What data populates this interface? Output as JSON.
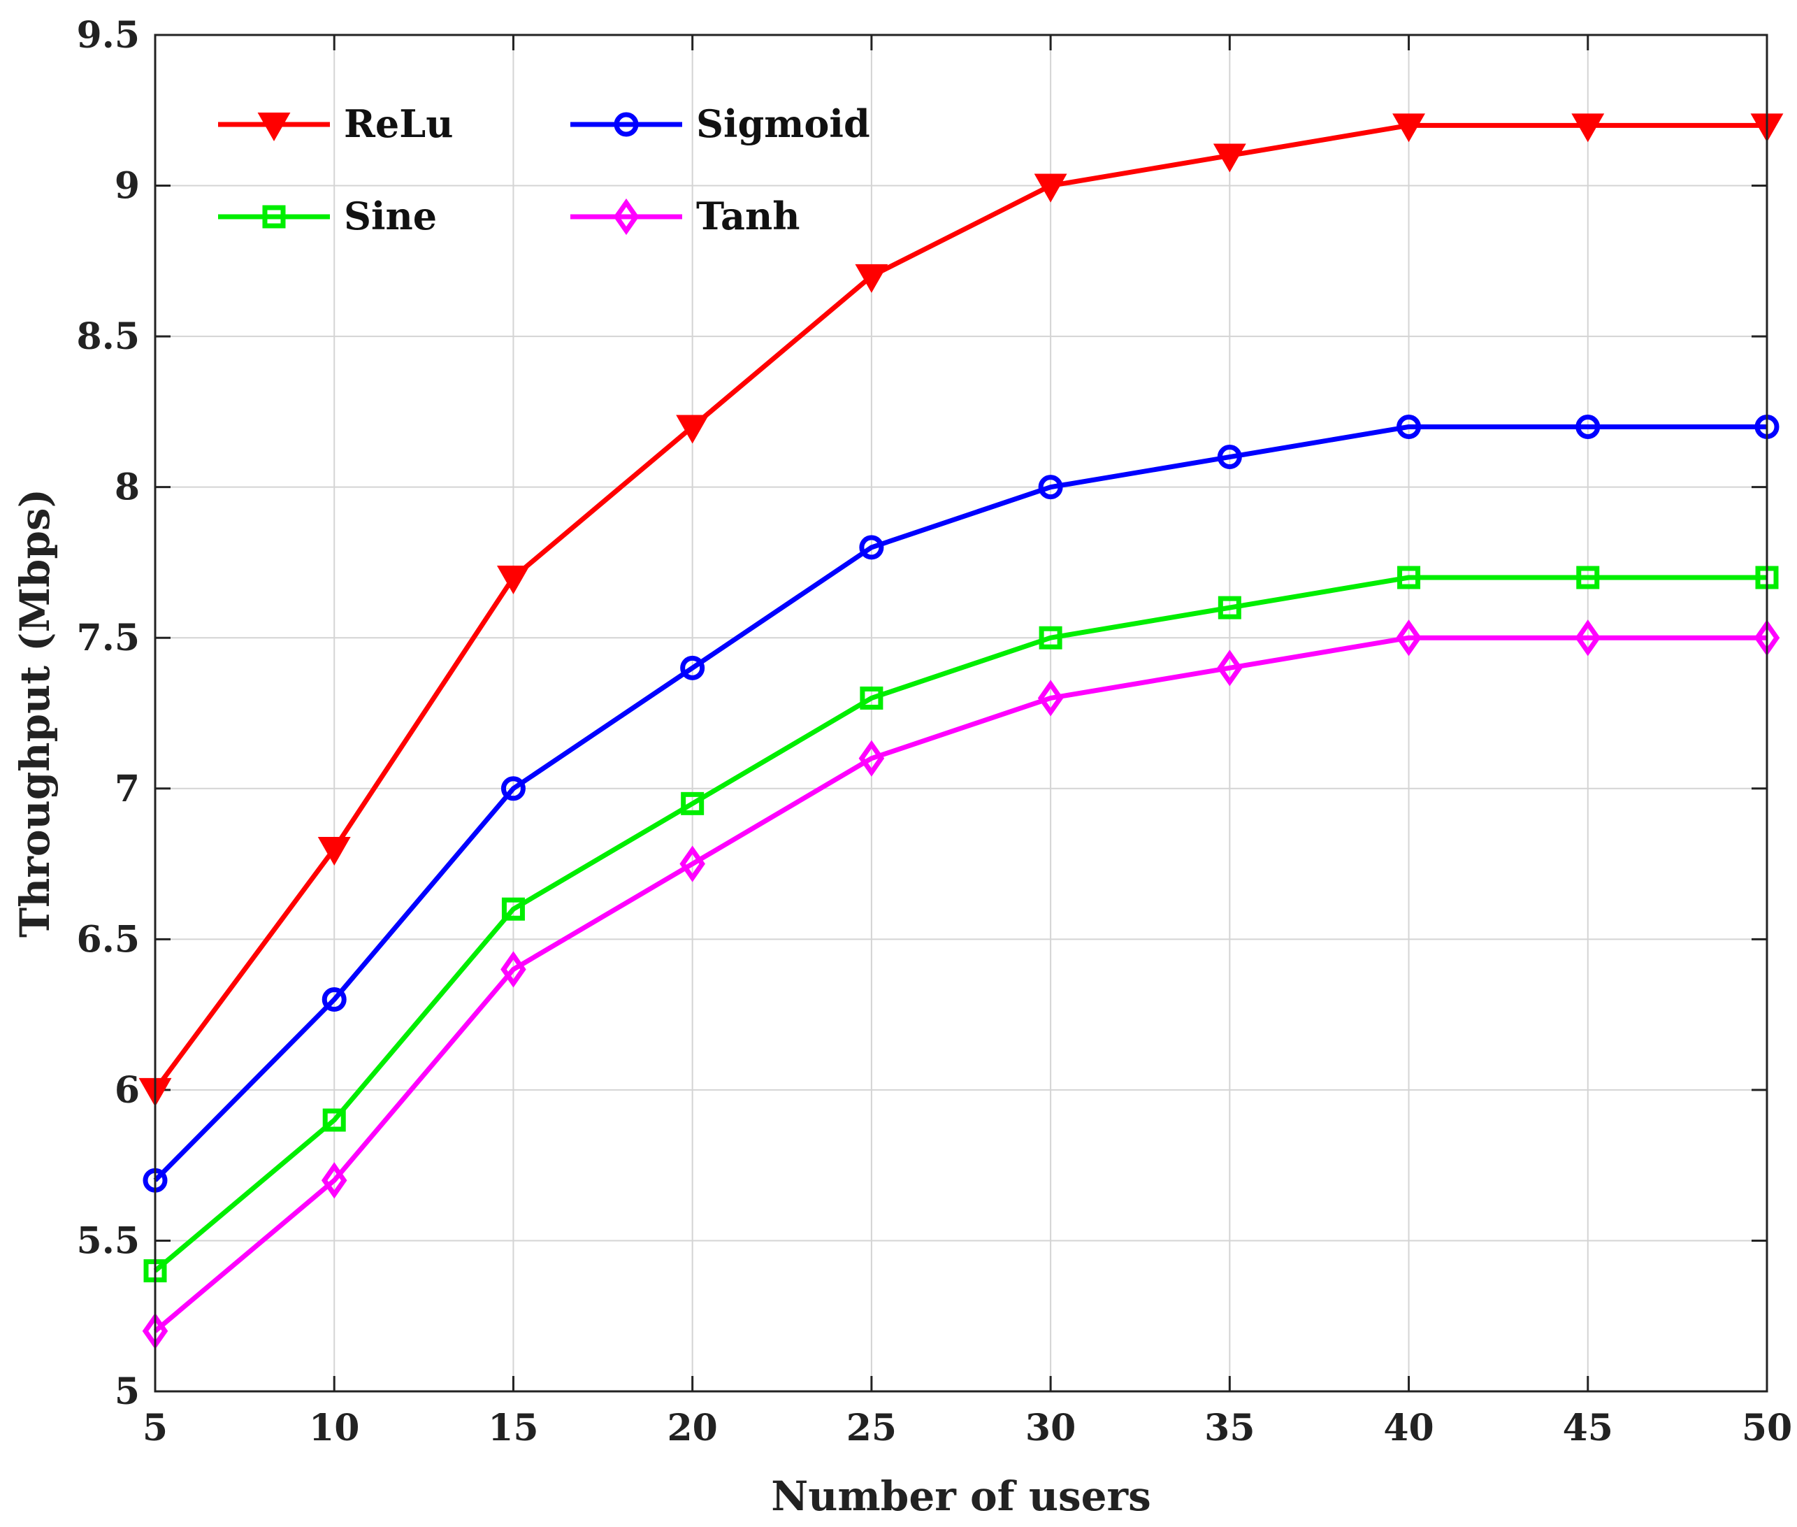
{
  "chart_data": {
    "type": "line",
    "title": "",
    "xlabel": "Number of users",
    "ylabel": "Throughput (Mbps)",
    "x": [
      5,
      10,
      15,
      20,
      25,
      30,
      35,
      40,
      45,
      50
    ],
    "xlim": [
      5,
      50
    ],
    "ylim": [
      5,
      9.5
    ],
    "xticks": [
      "5",
      "10",
      "15",
      "20",
      "25",
      "30",
      "35",
      "40",
      "45",
      "50"
    ],
    "yticks": [
      "5",
      "5.5",
      "6",
      "6.5",
      "7",
      "7.5",
      "8",
      "8.5",
      "9",
      "9.5"
    ],
    "grid": true,
    "legend_position": "top-left",
    "series": [
      {
        "name": "ReLu",
        "color": "#ff0000",
        "marker": "triangle-down",
        "values": [
          6.0,
          6.8,
          7.7,
          8.2,
          8.7,
          9.0,
          9.1,
          9.2,
          9.2,
          9.2
        ]
      },
      {
        "name": "Sigmoid",
        "color": "#0000ff",
        "marker": "circle",
        "values": [
          5.7,
          6.3,
          7.0,
          7.4,
          7.8,
          8.0,
          8.1,
          8.2,
          8.2,
          8.2
        ]
      },
      {
        "name": "Sine",
        "color": "#00ee00",
        "marker": "square",
        "values": [
          5.4,
          5.9,
          6.6,
          6.95,
          7.3,
          7.5,
          7.6,
          7.7,
          7.7,
          7.7
        ]
      },
      {
        "name": "Tanh",
        "color": "#ff00ff",
        "marker": "diamond",
        "values": [
          5.2,
          5.7,
          6.4,
          6.75,
          7.1,
          7.3,
          7.4,
          7.5,
          7.5,
          7.5
        ]
      }
    ]
  }
}
